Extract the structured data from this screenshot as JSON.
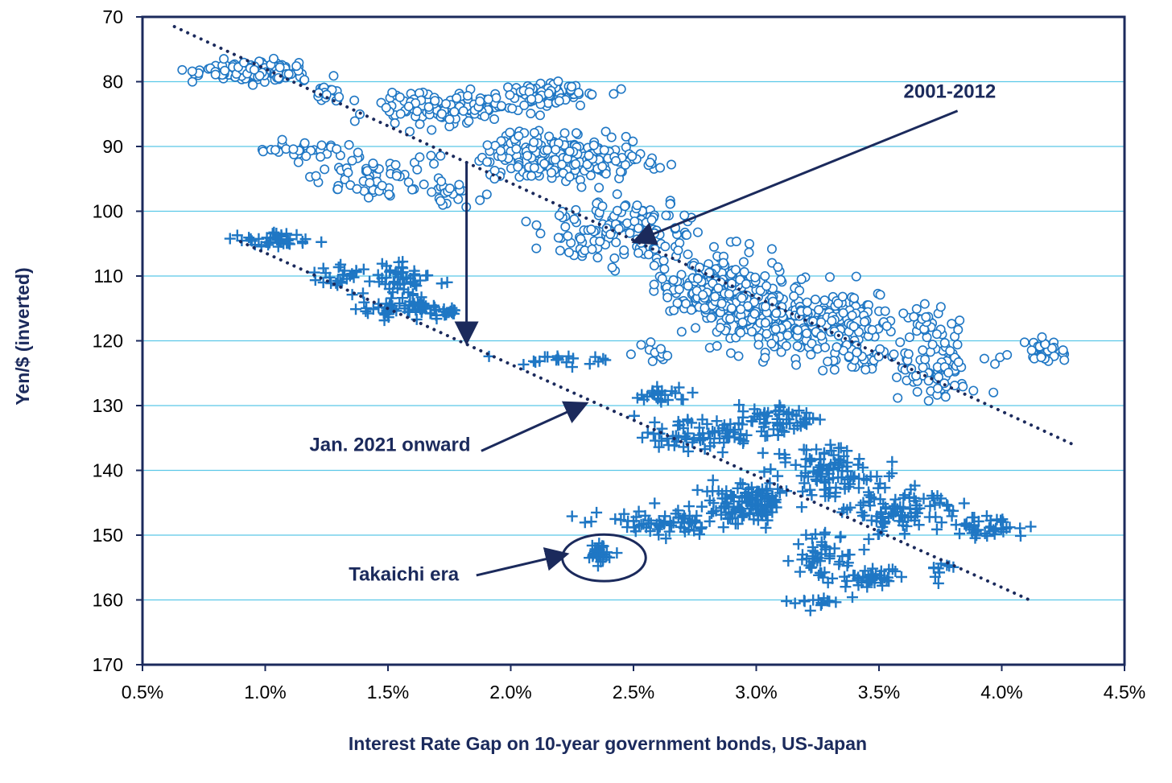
{
  "chart_data": {
    "type": "scatter",
    "title": "",
    "xlabel": "Interest Rate Gap on 10-year government bonds, US-Japan",
    "ylabel": "Yen/$ (inverted)",
    "xlim": [
      0.5,
      4.5
    ],
    "ylim": [
      70,
      170
    ],
    "y_inverted": true,
    "x_ticks": [
      0.5,
      1.0,
      1.5,
      2.0,
      2.5,
      3.0,
      3.5,
      4.0,
      4.5
    ],
    "x_tick_labels": [
      "0.5%",
      "1.0%",
      "1.5%",
      "2.0%",
      "2.5%",
      "3.0%",
      "3.5%",
      "4.0%",
      "4.5%"
    ],
    "y_ticks": [
      70,
      80,
      90,
      100,
      110,
      120,
      130,
      140,
      150,
      160,
      170
    ],
    "y_tick_labels": [
      "70",
      "80",
      "90",
      "100",
      "110",
      "120",
      "130",
      "140",
      "150",
      "160",
      "170"
    ],
    "grid": "horizontal",
    "colors": {
      "series": "#1f77c4",
      "navy": "#1b2a5c",
      "grid": "#5bc8e8"
    },
    "series": [
      {
        "name": "2001-2012",
        "marker": "circle",
        "clusters": [
          {
            "cx": 0.95,
            "cy": 78.5,
            "sx": 0.17,
            "sy": 1.3,
            "n": 170
          },
          {
            "cx": 1.25,
            "cy": 82.0,
            "sx": 0.05,
            "sy": 1.2,
            "n": 20
          },
          {
            "cx": 1.15,
            "cy": 90.5,
            "sx": 0.18,
            "sy": 1.2,
            "n": 30
          },
          {
            "cx": 1.45,
            "cy": 94.5,
            "sx": 0.18,
            "sy": 3.0,
            "n": 60
          },
          {
            "cx": 1.75,
            "cy": 97.0,
            "sx": 0.1,
            "sy": 2.0,
            "n": 25
          },
          {
            "cx": 1.75,
            "cy": 84.0,
            "sx": 0.25,
            "sy": 2.2,
            "n": 130
          },
          {
            "cx": 2.15,
            "cy": 82.0,
            "sx": 0.17,
            "sy": 1.6,
            "n": 100
          },
          {
            "cx": 2.15,
            "cy": 91.5,
            "sx": 0.25,
            "sy": 3.2,
            "n": 160
          },
          {
            "cx": 2.45,
            "cy": 92.5,
            "sx": 0.12,
            "sy": 1.8,
            "n": 40
          },
          {
            "cx": 2.45,
            "cy": 103.0,
            "sx": 0.28,
            "sy": 4.0,
            "n": 140
          },
          {
            "cx": 2.85,
            "cy": 112.0,
            "sx": 0.2,
            "sy": 4.5,
            "n": 240
          },
          {
            "cx": 3.05,
            "cy": 117.0,
            "sx": 0.18,
            "sy": 4.0,
            "n": 150
          },
          {
            "cx": 3.35,
            "cy": 116.5,
            "sx": 0.17,
            "sy": 3.5,
            "n": 120
          },
          {
            "cx": 3.4,
            "cy": 122.5,
            "sx": 0.2,
            "sy": 2.0,
            "n": 40
          },
          {
            "cx": 3.75,
            "cy": 124.5,
            "sx": 0.15,
            "sy": 4.0,
            "n": 80
          },
          {
            "cx": 3.7,
            "cy": 116.5,
            "sx": 0.07,
            "sy": 1.5,
            "n": 25
          },
          {
            "cx": 4.15,
            "cy": 121.5,
            "sx": 0.1,
            "sy": 2.0,
            "n": 30
          },
          {
            "cx": 2.6,
            "cy": 121.5,
            "sx": 0.07,
            "sy": 1.5,
            "n": 12
          }
        ]
      },
      {
        "name": "Jan. 2021 onward",
        "marker": "plus",
        "clusters": [
          {
            "cx": 1.05,
            "cy": 104.5,
            "sx": 0.12,
            "sy": 1.0,
            "n": 40
          },
          {
            "cx": 1.3,
            "cy": 110.0,
            "sx": 0.1,
            "sy": 1.5,
            "n": 25
          },
          {
            "cx": 1.55,
            "cy": 110.5,
            "sx": 0.12,
            "sy": 2.5,
            "n": 50
          },
          {
            "cx": 1.55,
            "cy": 115.0,
            "sx": 0.18,
            "sy": 1.2,
            "n": 60
          },
          {
            "cx": 1.75,
            "cy": 115.5,
            "sx": 0.07,
            "sy": 1.0,
            "n": 15
          },
          {
            "cx": 2.2,
            "cy": 123.0,
            "sx": 0.15,
            "sy": 1.0,
            "n": 20
          },
          {
            "cx": 2.6,
            "cy": 128.5,
            "sx": 0.1,
            "sy": 1.5,
            "n": 25
          },
          {
            "cx": 2.8,
            "cy": 134.0,
            "sx": 0.25,
            "sy": 2.5,
            "n": 80
          },
          {
            "cx": 3.1,
            "cy": 132.0,
            "sx": 0.15,
            "sy": 2.0,
            "n": 50
          },
          {
            "cx": 2.95,
            "cy": 145.0,
            "sx": 0.15,
            "sy": 2.5,
            "n": 120
          },
          {
            "cx": 2.65,
            "cy": 148.0,
            "sx": 0.22,
            "sy": 1.5,
            "n": 70
          },
          {
            "cx": 3.3,
            "cy": 140.0,
            "sx": 0.18,
            "sy": 3.5,
            "n": 100
          },
          {
            "cx": 3.6,
            "cy": 146.0,
            "sx": 0.18,
            "sy": 3.0,
            "n": 90
          },
          {
            "cx": 3.95,
            "cy": 149.0,
            "sx": 0.14,
            "sy": 1.5,
            "n": 40
          },
          {
            "cx": 3.25,
            "cy": 153.0,
            "sx": 0.1,
            "sy": 3.0,
            "n": 50
          },
          {
            "cx": 3.45,
            "cy": 156.5,
            "sx": 0.1,
            "sy": 1.2,
            "n": 40
          },
          {
            "cx": 3.25,
            "cy": 160.5,
            "sx": 0.1,
            "sy": 1.0,
            "n": 15
          },
          {
            "cx": 3.75,
            "cy": 156.0,
            "sx": 0.05,
            "sy": 2.0,
            "n": 10
          },
          {
            "cx": 2.37,
            "cy": 153.0,
            "sx": 0.04,
            "sy": 1.2,
            "n": 30
          }
        ]
      }
    ],
    "trendlines": [
      {
        "name": "2001-2012 trend",
        "x": [
          0.63,
          4.29
        ],
        "y": [
          71.5,
          136.0
        ]
      },
      {
        "name": "Jan. 2021 onward trend",
        "x": [
          0.9,
          4.13
        ],
        "y": [
          104.7,
          160.3
        ]
      }
    ],
    "annotations": [
      {
        "id": "label_2001_2012",
        "text": "2001-2012",
        "x": 3.6,
        "y": 82.5
      },
      {
        "id": "label_2021",
        "text": "Jan. 2021 onward",
        "x": 1.18,
        "y": 137.0
      },
      {
        "id": "label_takaichi",
        "text": "Takaichi era",
        "x": 1.34,
        "y": 157.0
      }
    ],
    "arrows": [
      {
        "name": "arrow-2001-2012",
        "from": [
          3.82,
          84.5
        ],
        "to": [
          2.51,
          104.6
        ]
      },
      {
        "name": "arrow-jan-2021",
        "from": [
          1.88,
          137.0
        ],
        "to": [
          2.3,
          129.8
        ]
      },
      {
        "name": "arrow-shift-down",
        "from": [
          1.82,
          92.5
        ],
        "to": [
          1.82,
          120.0
        ]
      },
      {
        "name": "arrow-takaichi",
        "from": [
          1.86,
          156.2
        ],
        "to": [
          2.22,
          153.0
        ]
      }
    ],
    "highlight": {
      "name": "takaichi-circle",
      "cx": 2.38,
      "cy": 153.5,
      "rx": 0.17,
      "ry": 3.6
    }
  }
}
